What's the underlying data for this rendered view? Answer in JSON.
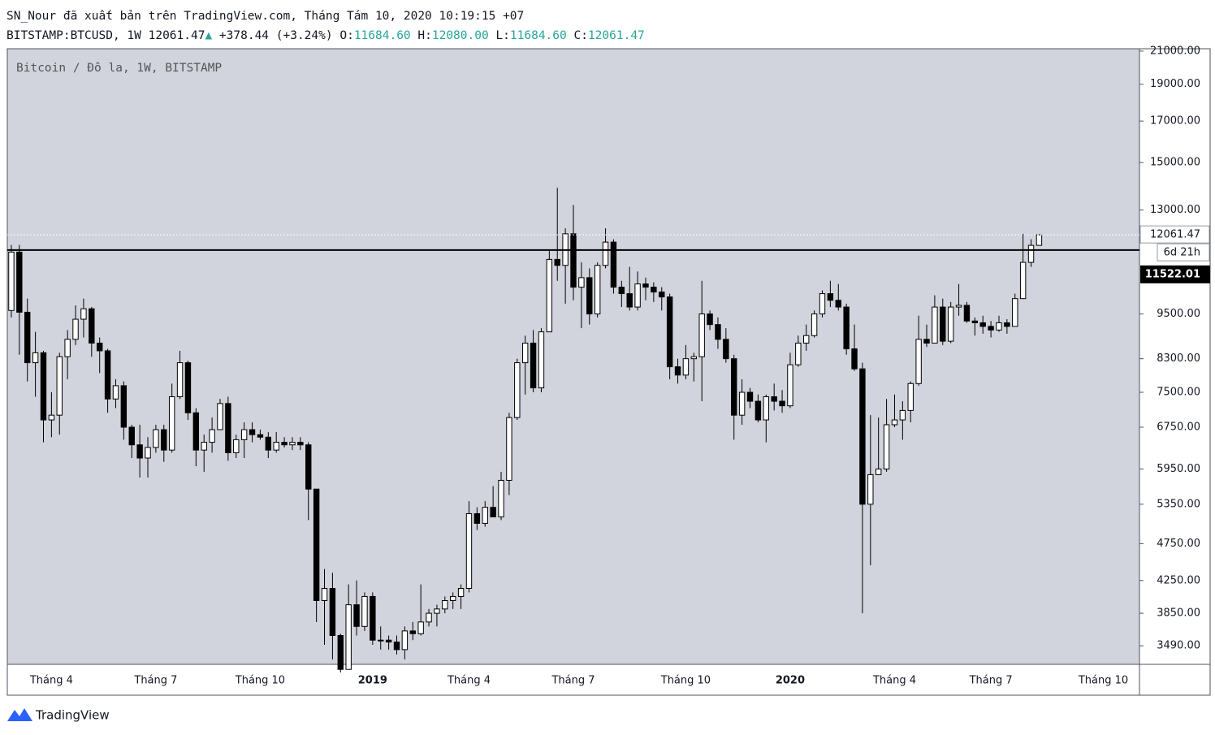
{
  "header": {
    "published": "SN_Nour đã xuất bản trên TradingView.com, Tháng Tám 10, 2020 10:19:15 +07",
    "symbol": "BITSTAMP:BTCUSD, 1W",
    "price": "12061.47",
    "arrow": "▲",
    "change": "+378.44",
    "change_pct": "(+3.24%)",
    "ohlc": [
      {
        "key": "O:",
        "value": "11684.60"
      },
      {
        "key": "H:",
        "value": "12080.00"
      },
      {
        "key": "L:",
        "value": "11684.60"
      },
      {
        "key": "C:",
        "value": "12061.47"
      }
    ]
  },
  "chart_data": {
    "type": "candlestick",
    "legend_text": "Bitcoin / Đô la, 1W, BITSTAMP",
    "background": "#d1d4dc",
    "up_color": "#ffffff",
    "down_color": "#000000",
    "wick_color": "#000000",
    "log_scale": true,
    "grid": false,
    "ylim": [
      3300,
      21150
    ],
    "yticks": [
      {
        "value": 3490,
        "label": "3490.00"
      },
      {
        "value": 3850,
        "label": "3850.00"
      },
      {
        "value": 4250,
        "label": "4250.00"
      },
      {
        "value": 4750,
        "label": "4750.00"
      },
      {
        "value": 5350,
        "label": "5350.00"
      },
      {
        "value": 5950,
        "label": "5950.00"
      },
      {
        "value": 6750,
        "label": "6750.00"
      },
      {
        "value": 7500,
        "label": "7500.00"
      },
      {
        "value": 8300,
        "label": "8300.00"
      },
      {
        "value": 9500,
        "label": "9500.00"
      },
      {
        "value": 13000,
        "label": "13000.00"
      },
      {
        "value": 15000,
        "label": "15000.00"
      },
      {
        "value": 17000,
        "label": "17000.00"
      },
      {
        "value": 19000,
        "label": "19000.00"
      },
      {
        "value": 21000,
        "label": "21000.00"
      }
    ],
    "hline": {
      "value": 11522.01,
      "label": "11522.01",
      "color": "#000000"
    },
    "last_price": {
      "value": 12061.47,
      "label": "12061.47",
      "countdown": "6d 21h"
    },
    "categories": [
      null,
      null,
      null,
      null,
      null,
      "Tháng 4",
      null,
      null,
      null,
      null,
      null,
      null,
      null,
      null,
      null,
      null,
      null,
      null,
      "Tháng 7",
      null,
      null,
      null,
      null,
      null,
      null,
      null,
      null,
      null,
      null,
      null,
      null,
      "Tháng 10",
      null,
      null,
      null,
      null,
      null,
      null,
      null,
      null,
      null,
      null,
      null,
      null,
      null,
      "2019",
      null,
      null,
      null,
      null,
      null,
      null,
      null,
      null,
      null,
      null,
      null,
      "Tháng 4",
      null,
      null,
      null,
      null,
      null,
      null,
      null,
      null,
      null,
      null,
      null,
      null,
      "Tháng 7",
      null,
      null,
      null,
      null,
      null,
      null,
      null,
      null,
      null,
      null,
      null,
      null,
      null,
      "Tháng 10",
      null,
      null,
      null,
      null,
      null,
      null,
      null,
      null,
      null,
      null,
      null,
      null,
      "2020",
      null,
      null,
      null,
      null,
      null,
      null,
      null,
      null,
      null,
      null,
      null,
      null,
      "Tháng 4",
      null,
      null,
      null,
      null,
      null,
      null,
      null,
      null,
      null,
      null,
      null,
      "Tháng 7",
      null,
      null,
      null,
      null,
      null,
      null,
      null,
      null,
      null,
      null,
      null,
      null,
      null,
      "Tháng 10",
      null,
      null,
      null,
      null
    ],
    "open": [
      9600,
      11450,
      9550,
      8200,
      8450,
      6900,
      7000,
      8350,
      8800,
      9350,
      9650,
      8700,
      8500,
      7350,
      7650,
      6750,
      6400,
      6150,
      6350,
      6700,
      6300,
      7400,
      8200,
      7050,
      6300,
      6450,
      6700,
      7250,
      6250,
      6500,
      6700,
      6600,
      6550,
      6300,
      6450,
      6400,
      6450,
      6400,
      5600,
      4000,
      4150,
      3600,
      3250,
      3950,
      3700,
      4050,
      3550,
      3550,
      3530,
      3450,
      3650,
      3620,
      3750,
      3850,
      3900,
      4000,
      4050,
      4150,
      5200,
      5050,
      5300,
      5150,
      5750,
      6950,
      8200,
      8700,
      7600,
      9000,
      11200,
      11000,
      12100,
      10300,
      10600,
      9500,
      11000,
      11800,
      10300,
      10100,
      9700,
      10400,
      10300,
      10150,
      10000,
      8100,
      7900,
      8300,
      8350,
      9500,
      9200,
      8800,
      8300,
      7000,
      7500,
      7300,
      6900,
      7400,
      7300,
      7200,
      8150,
      8700,
      8900,
      9500,
      10100,
      9900,
      9700,
      8550,
      8050,
      5350,
      5850,
      5950,
      6800,
      6900,
      7100,
      7700,
      8800,
      8700,
      9700,
      8750,
      9700,
      9750,
      9300,
      9250,
      9150,
      9050,
      9250,
      9150,
      9950,
      11100,
      11684.6,
      null,
      null,
      null,
      null,
      null,
      null,
      null,
      null,
      null,
      null,
      null,
      null
    ],
    "high": [
      11700,
      11700,
      9950,
      9000,
      8500,
      7500,
      8450,
      9050,
      9750,
      9950,
      9700,
      8850,
      8550,
      7800,
      7750,
      6800,
      6800,
      6550,
      6800,
      6800,
      7700,
      8500,
      8250,
      7150,
      6600,
      6950,
      7350,
      7400,
      6600,
      6850,
      6850,
      6700,
      6650,
      6650,
      6550,
      6550,
      6550,
      6450,
      5600,
      4400,
      4350,
      3620,
      4200,
      4250,
      4100,
      4100,
      3700,
      3600,
      3600,
      3700,
      3750,
      4200,
      3900,
      3950,
      4050,
      4100,
      4200,
      5400,
      5300,
      5400,
      5650,
      5900,
      7050,
      8300,
      8900,
      9050,
      9100,
      11500,
      13900,
      12300,
      13200,
      11100,
      10900,
      11100,
      12300,
      11900,
      10500,
      10950,
      10800,
      10600,
      10450,
      10300,
      10100,
      8300,
      8650,
      8450,
      10500,
      9600,
      9400,
      9100,
      8400,
      7800,
      7600,
      7450,
      7450,
      7700,
      7550,
      8450,
      8900,
      9200,
      9600,
      10200,
      10500,
      10400,
      9800,
      9200,
      8200,
      7000,
      6950,
      7350,
      7450,
      7300,
      7750,
      9450,
      9200,
      10050,
      9950,
      9850,
      10400,
      9850,
      9400,
      9450,
      9300,
      9450,
      9350,
      10100,
      12100,
      11900,
      12080,
      null,
      null,
      null,
      null,
      null,
      null,
      null,
      null,
      null,
      null,
      null,
      null
    ],
    "low": [
      9400,
      8400,
      7750,
      7400,
      6450,
      6550,
      6600,
      7800,
      8650,
      8850,
      8350,
      7950,
      7050,
      7150,
      6500,
      6150,
      5800,
      5800,
      6250,
      6080,
      6250,
      7350,
      6900,
      6000,
      5900,
      6250,
      6700,
      6100,
      6150,
      6150,
      6450,
      6500,
      6150,
      6250,
      6350,
      6300,
      6300,
      5100,
      3750,
      3500,
      3350,
      3220,
      3250,
      3600,
      3650,
      3500,
      3450,
      3450,
      3400,
      3350,
      3550,
      3600,
      3700,
      3700,
      3850,
      3900,
      3900,
      4100,
      4950,
      5000,
      5200,
      5100,
      5500,
      6900,
      7450,
      7500,
      7500,
      9000,
      10500,
      9800,
      9900,
      9100,
      9200,
      9400,
      10900,
      10100,
      9700,
      9600,
      9600,
      9900,
      9850,
      9600,
      7800,
      7700,
      7800,
      7750,
      7300,
      9050,
      8550,
      8200,
      6500,
      6800,
      7150,
      6850,
      6450,
      7100,
      7050,
      7150,
      8100,
      8500,
      8850,
      9400,
      9700,
      9600,
      8400,
      8000,
      3850,
      4450,
      5850,
      5900,
      6750,
      6500,
      6850,
      7650,
      8600,
      8700,
      8650,
      8700,
      9450,
      9250,
      8900,
      8950,
      8850,
      9000,
      8950,
      9150,
      9950,
      10950,
      11684.6,
      null,
      null,
      null,
      null,
      null,
      null,
      null,
      null,
      null,
      null,
      null,
      null
    ],
    "close": [
      11450,
      9550,
      8200,
      8450,
      6900,
      7000,
      8350,
      8800,
      9350,
      9650,
      8700,
      8500,
      7350,
      7650,
      6750,
      6400,
      6150,
      6350,
      6700,
      6300,
      7400,
      8200,
      7050,
      6300,
      6450,
      6700,
      7250,
      6250,
      6500,
      6700,
      6600,
      6550,
      6300,
      6450,
      6400,
      6450,
      6400,
      5600,
      4000,
      4150,
      3600,
      3250,
      3950,
      3700,
      4050,
      3550,
      3550,
      3530,
      3450,
      3650,
      3620,
      3750,
      3850,
      3900,
      4000,
      4050,
      4150,
      5200,
      5050,
      5300,
      5150,
      5750,
      6950,
      8200,
      8700,
      7600,
      9000,
      11200,
      11000,
      12100,
      10300,
      10600,
      9500,
      11000,
      11800,
      10300,
      10100,
      9700,
      10400,
      10300,
      10150,
      10000,
      8100,
      7900,
      8300,
      8350,
      9500,
      9200,
      8800,
      8300,
      7000,
      7500,
      7300,
      6900,
      7400,
      7300,
      7200,
      8150,
      8700,
      8900,
      9500,
      10100,
      9900,
      9700,
      8550,
      8050,
      5350,
      5850,
      5950,
      6800,
      6900,
      7100,
      7700,
      8800,
      8700,
      9700,
      8750,
      9700,
      9750,
      9300,
      9250,
      9150,
      9050,
      9250,
      9150,
      9950,
      11100,
      11684.6,
      12061.47,
      null,
      null,
      null,
      null,
      null,
      null,
      null,
      null,
      null,
      null,
      null,
      null
    ]
  },
  "footer": {
    "brand": "TradingView"
  }
}
